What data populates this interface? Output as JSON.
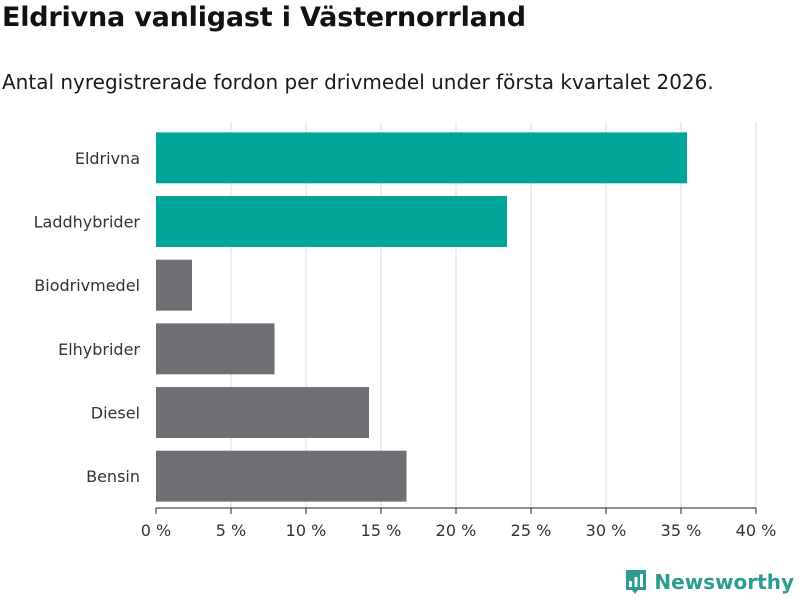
{
  "header": {
    "title": "Eldrivna vanligast i Västernorrland",
    "subtitle": "Antal nyregistrerade fordon per drivmedel under första kvartalet 2026."
  },
  "brand": {
    "name": "Newsworthy",
    "color": "#2a9d8f",
    "icon": "bar-chart-logo-icon"
  },
  "chart_data": {
    "type": "bar",
    "orientation": "horizontal",
    "title": "Eldrivna vanligast i Västernorrland",
    "subtitle": "Antal nyregistrerade fordon per drivmedel under första kvartalet 2026.",
    "xlabel": "",
    "ylabel": "",
    "categories": [
      "Eldrivna",
      "Laddhybrider",
      "Biodrivmedel",
      "Elhybrider",
      "Diesel",
      "Bensin"
    ],
    "values": [
      35.4,
      23.4,
      2.4,
      7.9,
      14.2,
      16.7
    ],
    "colors": [
      "#00a59a",
      "#00a59a",
      "#6e6e73",
      "#6e6e73",
      "#6e6e73",
      "#6e6e73"
    ],
    "xlim": [
      0,
      40
    ],
    "xticks": [
      0,
      5,
      10,
      15,
      20,
      25,
      30,
      35,
      40
    ],
    "tick_labels": [
      "0 %",
      "5 %",
      "10 %",
      "15 %",
      "20 %",
      "25 %",
      "30 %",
      "35 %",
      "40 %"
    ],
    "grid": true,
    "legend": "none"
  }
}
